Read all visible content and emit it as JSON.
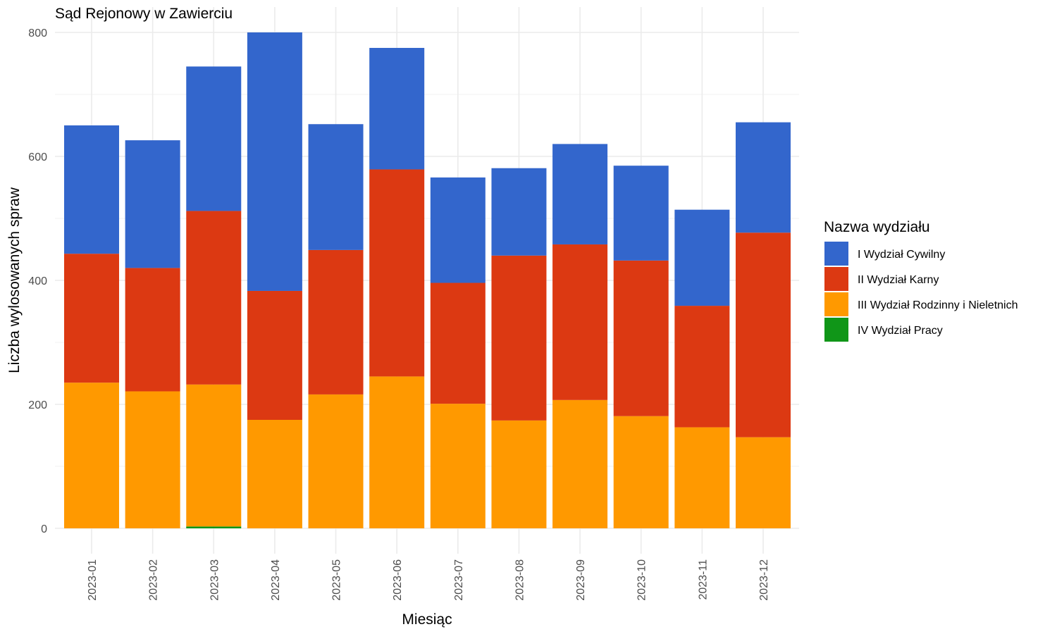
{
  "chart_data": {
    "type": "bar",
    "stacked": true,
    "title": "Sąd Rejonowy w Zawierciu",
    "xlabel": "Miesiąc",
    "ylabel": "Liczba wylosowanych spraw",
    "ylim": [
      0,
      800
    ],
    "yticks": [
      0,
      200,
      400,
      600,
      800
    ],
    "grid": true,
    "legend_title": "Nazwa wydziału",
    "legend_position": "right",
    "categories": [
      "2023-01",
      "2023-02",
      "2023-03",
      "2023-04",
      "2023-05",
      "2023-06",
      "2023-07",
      "2023-08",
      "2023-09",
      "2023-10",
      "2023-11",
      "2023-12"
    ],
    "series": [
      {
        "name": "IV Wydział Pracy",
        "color": "#109618",
        "values": [
          0,
          0,
          3,
          0,
          0,
          0,
          0,
          0,
          0,
          0,
          0,
          0
        ]
      },
      {
        "name": "III Wydział Rodzinny i Nieletnich",
        "color": "#FF9900",
        "values": [
          235,
          221,
          229,
          175,
          216,
          245,
          201,
          174,
          207,
          181,
          163,
          147
        ]
      },
      {
        "name": "II Wydział Karny",
        "color": "#DC3912",
        "values": [
          208,
          199,
          280,
          208,
          233,
          334,
          195,
          266,
          251,
          251,
          196,
          330
        ]
      },
      {
        "name": "I Wydział Cywilny",
        "color": "#3366CC",
        "values": [
          207,
          206,
          233,
          417,
          203,
          196,
          170,
          141,
          162,
          153,
          155,
          178
        ]
      }
    ],
    "legend_order": [
      "I Wydział Cywilny",
      "II Wydział Karny",
      "III Wydział Rodzinny i Nieletnich",
      "IV Wydział Pracy"
    ]
  }
}
